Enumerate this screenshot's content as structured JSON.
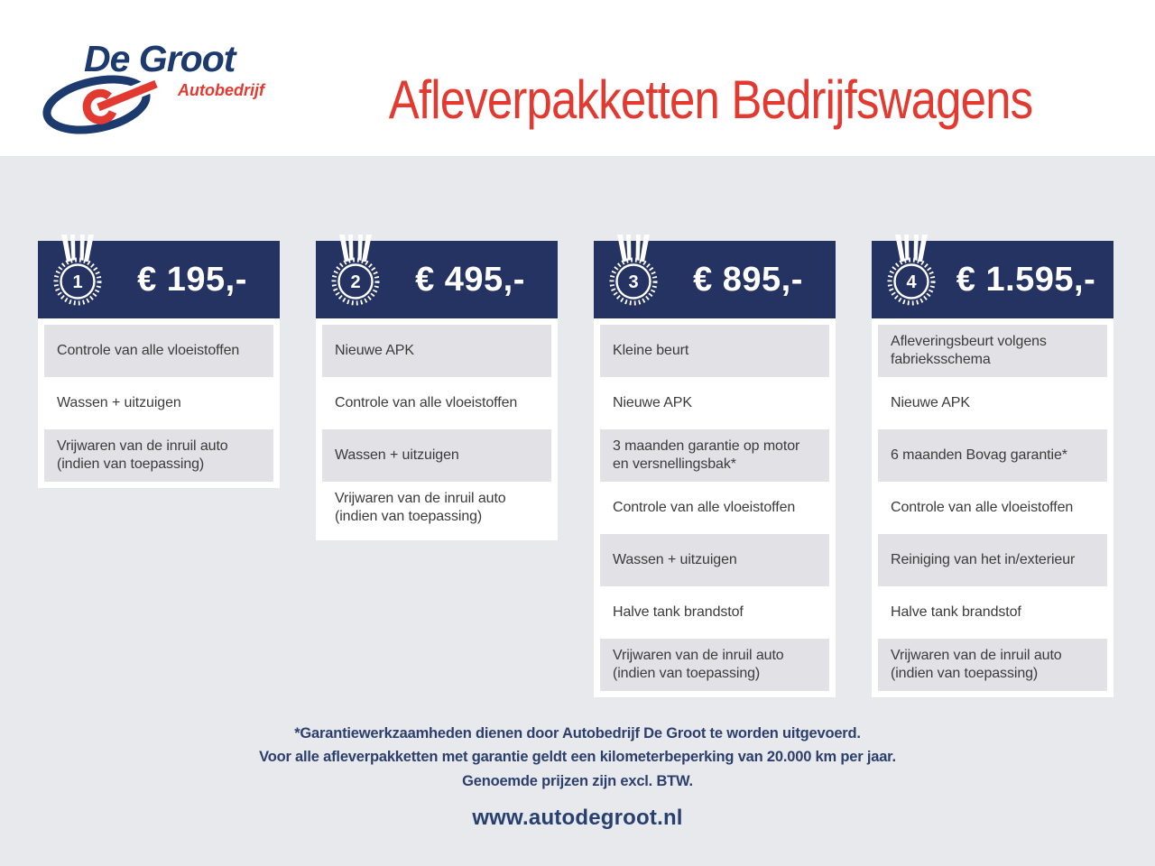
{
  "header": {
    "logo_name": "De Groot",
    "logo_subtitle": "Autobedrijf",
    "title": "Afleverpakketten Bedrijfswagens"
  },
  "packages": [
    {
      "number": "1",
      "price": "€ 195,-",
      "items": [
        "Controle van alle vloeistoffen",
        "Wassen + uitzuigen",
        "Vrijwaren van de inruil auto (indien van toepassing)"
      ]
    },
    {
      "number": "2",
      "price": "€ 495,-",
      "items": [
        "Nieuwe APK",
        "Controle van alle vloeistoffen",
        "Wassen + uitzuigen",
        "Vrijwaren van de inruil auto (indien van toepassing)"
      ]
    },
    {
      "number": "3",
      "price": "€ 895,-",
      "items": [
        "Kleine beurt",
        "Nieuwe APK",
        "3 maanden garantie op motor en versnellingsbak*",
        "Controle van alle vloeistoffen",
        "Wassen + uitzuigen",
        "Halve tank brandstof",
        "Vrijwaren van de inruil auto (indien van toepassing)"
      ]
    },
    {
      "number": "4",
      "price": "€ 1.595,-",
      "items": [
        "Afleveringsbeurt volgens fabrieksschema",
        "Nieuwe APK",
        "6 maanden Bovag garantie*",
        "Controle van alle vloeistoffen",
        "Reiniging van het in/exterieur",
        "Halve tank brandstof",
        "Vrijwaren van de inruil auto (indien van toepassing)"
      ]
    }
  ],
  "footnotes": [
    "*Garantiewerkzaamheden dienen door Autobedrijf De Groot te worden uitgevoerd.",
    "Voor alle afleverpakketten met garantie geldt een kilometerbeperking van 20.000 km per jaar.",
    "Genoemde prijzen zijn excl. BTW."
  ],
  "website": "www.autodegroot.nl",
  "colors": {
    "navy_header": "#253363",
    "logo_navy": "#1c3a6e",
    "accent_red": "#e23a30",
    "page_gray": "#e8e9ed",
    "row_gray": "#e2e2e6",
    "footer_navy": "#2c3f6c"
  }
}
